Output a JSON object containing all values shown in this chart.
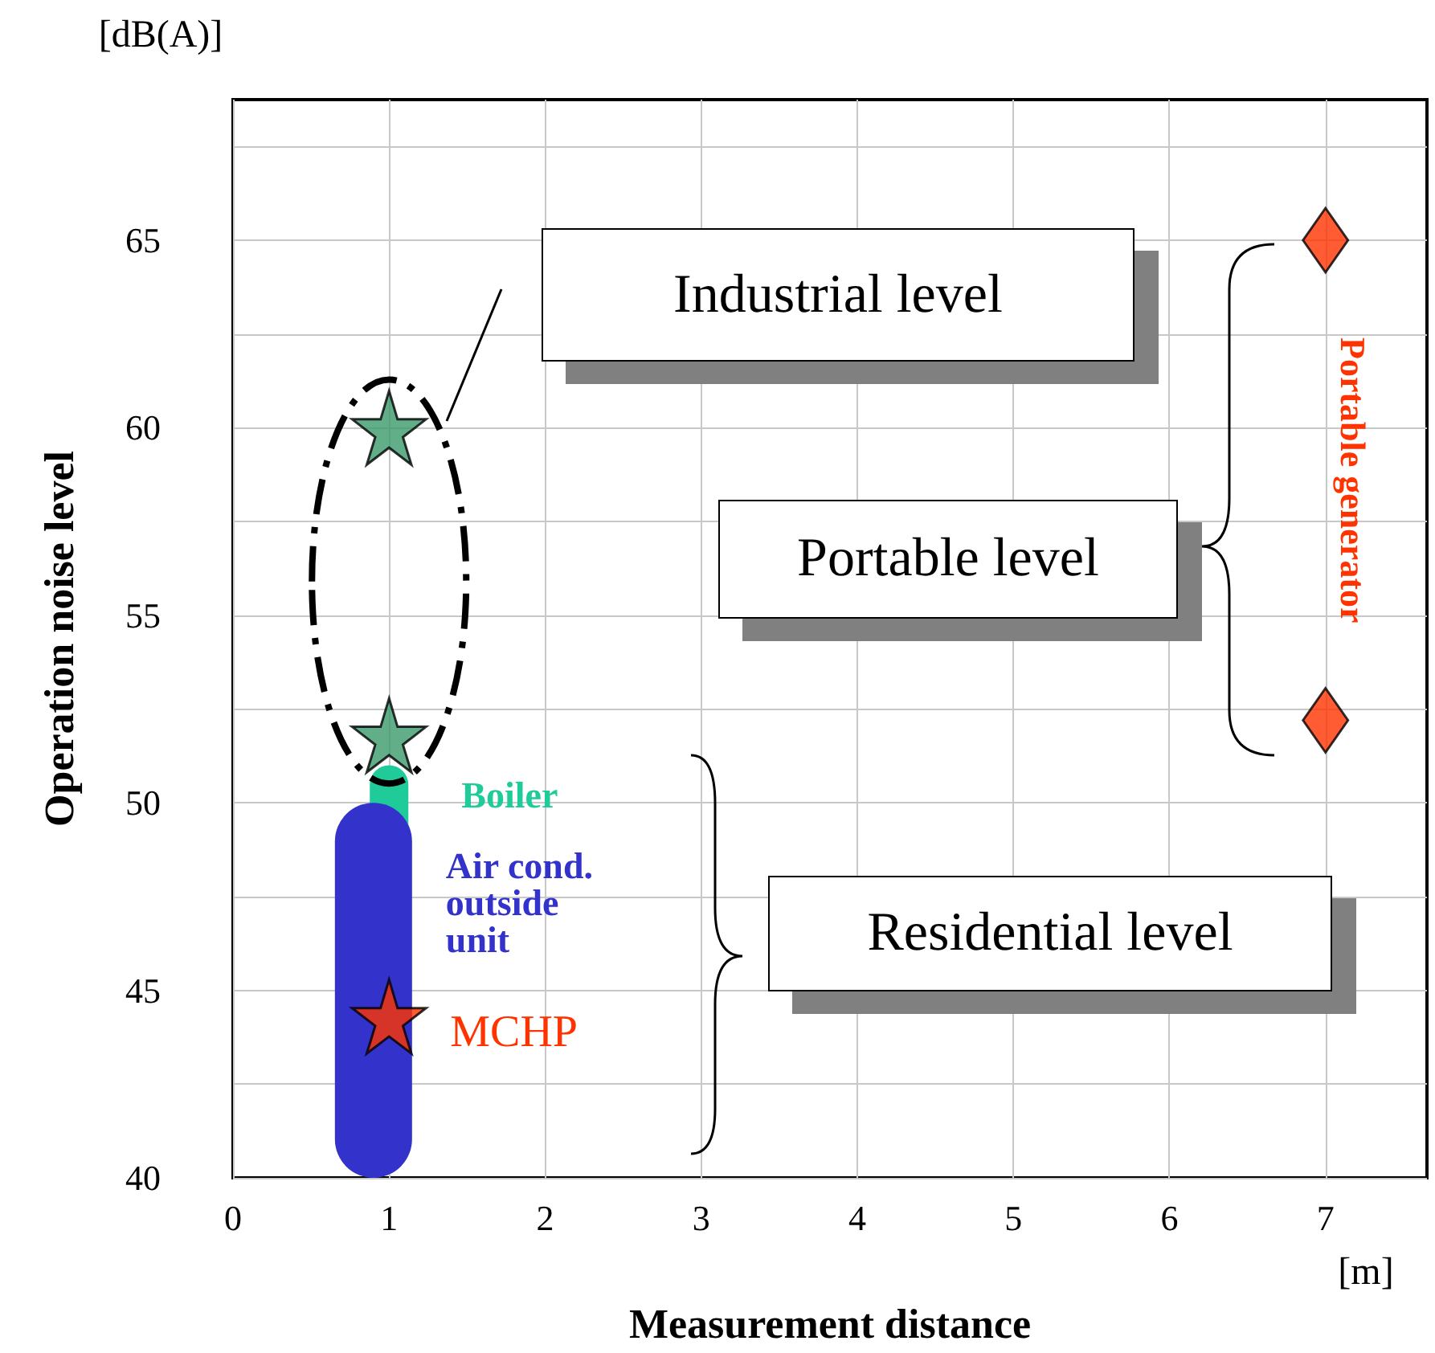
{
  "chart_data": {
    "type": "scatter",
    "xlabel": "Measurement distance",
    "ylabel": "Operation noise level",
    "annotations": [
      "[dB(A)]",
      "[m]",
      "Industrial level",
      "Portable level",
      "Residential level"
    ],
    "xlim": [
      0,
      7.65
    ],
    "ylim": [
      40,
      68.75
    ],
    "xticks": [
      0,
      1,
      2,
      3,
      4,
      5,
      6,
      7
    ],
    "yticks": [
      40,
      {
        "value": 42.5,
        "label": null
      },
      45,
      {
        "value": 47.5,
        "label": null
      },
      50,
      {
        "value": 52.5,
        "label": null
      },
      55,
      {
        "value": 57.5,
        "label": null
      },
      60,
      {
        "value": 62.5,
        "label": null
      },
      65,
      {
        "value": 67.5,
        "label": null
      }
    ],
    "grid": true,
    "legend": false,
    "series": [
      {
        "type": "bar",
        "name": "Boiler",
        "color": "#1fcc99",
        "x": [
          1
        ],
        "base": [
          47.5
        ],
        "values": [
          3.5
        ]
      },
      {
        "type": "bar",
        "name": "Air cond. outside unit",
        "color": "#3333cc",
        "x": [
          0.9
        ],
        "base": [
          40
        ],
        "values": [
          10
        ]
      },
      {
        "color": "#3a9a6a",
        "marker": "star",
        "x": [
          1,
          1
        ],
        "values": [
          60,
          51.8
        ]
      },
      {
        "name": "MCHP",
        "color": "#ff3300",
        "marker": "star",
        "x": [
          1
        ],
        "values": [
          44.3
        ]
      },
      {
        "name": "Portable generator",
        "color": "#ff3300",
        "marker": "diamond",
        "x": [
          7,
          7
        ],
        "values": [
          65,
          52.2
        ]
      }
    ]
  }
}
